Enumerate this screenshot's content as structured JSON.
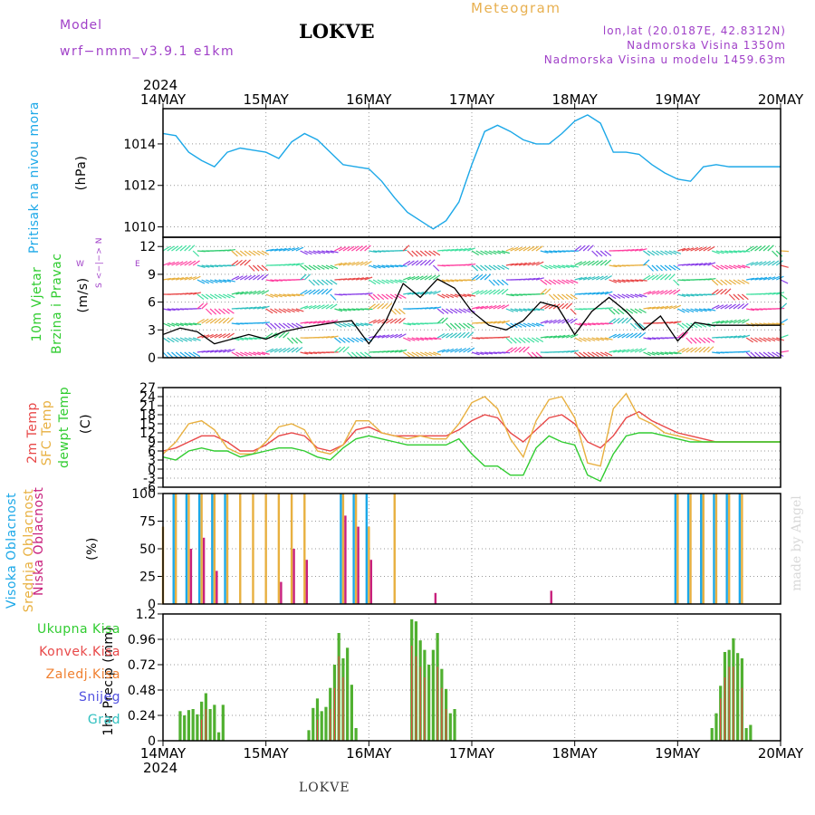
{
  "header": {
    "model_label": "Model",
    "model_name": "wrf−nmm_v3.9.1  e1km",
    "title": "LOKVE",
    "meteogram": "Meteogram",
    "lonlat": "lon,lat (20.0187E, 42.8312N)",
    "altitude": "Nadmorska Visina 1350m",
    "model_altitude": "Nadmorska Visina u modelu 1459.63m"
  },
  "footer": {
    "station": "LOKVE"
  },
  "credit": "made by Angel",
  "time_axis": {
    "year": "2024",
    "labels": [
      "14MAY",
      "15MAY",
      "16MAY",
      "17MAY",
      "18MAY",
      "19MAY",
      "20MAY"
    ]
  },
  "panels": {
    "pressure": {
      "label": "Pritisak na nivou mora",
      "unit": "(hPa)"
    },
    "wind": {
      "label_line1": "10m Vjetar",
      "label_line2": "Brzina i Pravac",
      "unit": "(m/s)",
      "compass": {
        "w": "W",
        "e": "E",
        "s": "S",
        "n": "N",
        "arrow": "<−|−>"
      }
    },
    "temp": {
      "label1": "2m Temp",
      "label2": "SFC Temp",
      "label3": "dewpt Temp",
      "unit": "(C)"
    },
    "cloud": {
      "label1": "Visoka Oblacnost",
      "label2": "Srednja Oblacnost",
      "label3": "Niska Oblacnost",
      "unit": "(%)"
    },
    "precip": {
      "label": "1hr Precip (mm)",
      "legend": [
        "Ukupna Kisa",
        "Konvek.Kisa",
        "Zaledj.Kisa",
        "Snijeg",
        "Grad"
      ]
    }
  },
  "colors": {
    "pressure": "#1ca8e8",
    "temp2m": "#e84848",
    "sfc": "#e8b040",
    "dewpt": "#30cc30",
    "high": "#1ca8e8",
    "mid": "#e8b040",
    "low": "#c8207c",
    "precip_total": "#50b030",
    "precip_conv": "#e84848",
    "frz": "#f08030",
    "snow": "#5050e0",
    "hail": "#30c0c0",
    "purple": "#a040c8"
  },
  "chart_data": [
    {
      "type": "line",
      "title": "Pritisak na nivou mora",
      "ylabel": "(hPa)",
      "ylim": [
        1009.5,
        1015.7
      ],
      "yticks": [
        1010,
        1012,
        1014
      ],
      "x_hours": [
        0,
        3,
        6,
        9,
        12,
        15,
        18,
        21,
        24,
        27,
        30,
        33,
        36,
        39,
        42,
        45,
        48,
        51,
        54,
        57,
        60,
        63,
        66,
        69,
        72,
        75,
        78,
        81,
        84,
        87,
        90,
        93,
        96,
        99,
        102,
        105,
        108,
        111,
        114,
        117,
        120,
        123,
        126,
        129,
        132,
        135,
        138,
        141,
        144
      ],
      "values": [
        1014.5,
        1014.4,
        1013.6,
        1013.2,
        1012.9,
        1013.6,
        1013.8,
        1013.7,
        1013.6,
        1013.3,
        1014.1,
        1014.5,
        1014.2,
        1013.6,
        1013.0,
        1012.9,
        1012.8,
        1012.2,
        1011.4,
        1010.7,
        1010.3,
        1009.9,
        1010.3,
        1011.2,
        1013.0,
        1014.6,
        1014.9,
        1014.6,
        1014.2,
        1014.0,
        1014.0,
        1014.5,
        1015.1,
        1015.4,
        1015.0,
        1013.6,
        1013.6,
        1013.5,
        1013.0,
        1012.6,
        1012.3,
        1012.2,
        1012.9,
        1013.0,
        1012.9,
        1012.9,
        1012.9,
        1012.9,
        1012.9
      ]
    },
    {
      "type": "line",
      "title": "10m Vjetar Brzina i Pravac",
      "ylabel": "(m/s)",
      "ylim": [
        0,
        13
      ],
      "yticks": [
        0,
        3,
        6,
        9,
        12
      ],
      "x_hours": [
        0,
        4,
        8,
        12,
        16,
        20,
        24,
        28,
        32,
        36,
        40,
        44,
        48,
        52,
        56,
        60,
        64,
        68,
        72,
        76,
        80,
        84,
        88,
        92,
        96,
        100,
        104,
        108,
        112,
        116,
        120,
        124,
        128,
        132,
        136,
        140,
        144
      ],
      "values": [
        2.5,
        3.2,
        2.8,
        1.5,
        2.0,
        2.5,
        2.0,
        2.8,
        3.2,
        3.5,
        3.8,
        4.0,
        1.5,
        4.0,
        8.0,
        6.5,
        8.5,
        7.5,
        5.0,
        3.5,
        3.0,
        4.0,
        6.0,
        5.5,
        2.5,
        5.0,
        6.5,
        5.0,
        3.0,
        4.5,
        1.8,
        3.8,
        3.5,
        3.5,
        3.5,
        3.5,
        3.5
      ]
    },
    {
      "type": "line",
      "title": "Temp",
      "ylabel": "(C)",
      "ylim": [
        -6,
        27
      ],
      "yticks": [
        -6,
        -3,
        0,
        3,
        6,
        9,
        12,
        15,
        18,
        21,
        24,
        27
      ],
      "x_hours": [
        0,
        3,
        6,
        9,
        12,
        15,
        18,
        21,
        24,
        27,
        30,
        33,
        36,
        39,
        42,
        45,
        48,
        51,
        54,
        57,
        60,
        63,
        66,
        69,
        72,
        75,
        78,
        81,
        84,
        87,
        90,
        93,
        96,
        99,
        102,
        105,
        108,
        111,
        114,
        117,
        120,
        123,
        126,
        129,
        132,
        135,
        138,
        141,
        144
      ],
      "series": [
        {
          "name": "2m Temp",
          "values": [
            6,
            7,
            9,
            11,
            11,
            9,
            6,
            6,
            8,
            11,
            12,
            11,
            7,
            6,
            8,
            13,
            14,
            12,
            11,
            11,
            11,
            11,
            11,
            13,
            16,
            18,
            17,
            12,
            9,
            13,
            17,
            18,
            15,
            9,
            7,
            11,
            17,
            19,
            16,
            14,
            12,
            11,
            10,
            9,
            9,
            9,
            9,
            9,
            9
          ]
        },
        {
          "name": "SFC Temp",
          "values": [
            5,
            9,
            15,
            16,
            13,
            7,
            5,
            5,
            9,
            14,
            15,
            13,
            6,
            5,
            8,
            16,
            16,
            12,
            11,
            10,
            11,
            10,
            10,
            15,
            22,
            24,
            20,
            10,
            4,
            16,
            23,
            24,
            17,
            2,
            1,
            20,
            25,
            17,
            15,
            12,
            11,
            10,
            9,
            9,
            9,
            9,
            9,
            9,
            9
          ]
        },
        {
          "name": "dewpt Temp",
          "values": [
            4,
            3,
            6,
            7,
            6,
            6,
            4,
            5,
            6,
            7,
            7,
            6,
            4,
            3,
            7,
            10,
            11,
            10,
            9,
            8,
            8,
            8,
            8,
            10,
            5,
            1,
            1,
            -2,
            -2,
            7,
            11,
            9,
            8,
            -2,
            -4,
            5,
            11,
            12,
            12,
            11,
            10,
            9,
            9,
            9,
            9,
            9,
            9,
            9,
            9
          ]
        }
      ]
    },
    {
      "type": "bar",
      "title": "Oblacnost",
      "ylabel": "(%)",
      "ylim": [
        0,
        100
      ],
      "yticks": [
        0,
        25,
        50,
        75,
        100
      ],
      "x_hours": [
        0,
        3,
        6,
        9,
        12,
        15,
        18,
        21,
        24,
        27,
        30,
        33,
        36,
        39,
        42,
        45,
        48,
        51,
        54,
        57,
        60,
        63,
        66,
        69,
        72,
        75,
        78,
        81,
        84,
        87,
        90,
        93,
        96,
        99,
        102,
        105,
        108,
        111,
        114,
        117,
        120,
        123,
        126,
        129,
        132,
        135,
        138,
        141,
        144
      ],
      "series": [
        {
          "name": "Visoka Oblacnost",
          "values": [
            0,
            100,
            100,
            100,
            100,
            100,
            0,
            0,
            0,
            0,
            0,
            0,
            0,
            0,
            100,
            100,
            100,
            0,
            0,
            0,
            0,
            0,
            0,
            0,
            0,
            0,
            0,
            0,
            0,
            0,
            0,
            0,
            0,
            0,
            0,
            0,
            0,
            0,
            0,
            0,
            100,
            100,
            100,
            100,
            100,
            100,
            0,
            0,
            0
          ]
        },
        {
          "name": "Srednja Oblacnost",
          "values": [
            70,
            100,
            100,
            100,
            100,
            100,
            100,
            100,
            100,
            100,
            100,
            100,
            0,
            0,
            100,
            100,
            70,
            0,
            100,
            0,
            0,
            0,
            0,
            0,
            0,
            0,
            0,
            0,
            0,
            0,
            0,
            0,
            0,
            0,
            0,
            0,
            0,
            0,
            0,
            0,
            100,
            100,
            100,
            100,
            100,
            100,
            0,
            0,
            0
          ]
        },
        {
          "name": "Niska Oblacnost",
          "values": [
            0,
            0,
            50,
            60,
            30,
            0,
            0,
            0,
            0,
            20,
            50,
            40,
            0,
            0,
            80,
            70,
            40,
            0,
            0,
            0,
            0,
            10,
            0,
            0,
            0,
            0,
            0,
            0,
            0,
            0,
            12,
            0,
            0,
            0,
            0,
            0,
            0,
            0,
            0,
            0,
            0,
            0,
            0,
            0,
            0,
            0,
            0,
            0,
            0
          ]
        }
      ]
    },
    {
      "type": "bar",
      "title": "1hr Precip",
      "ylabel": "1hr Precip (mm)",
      "ylim": [
        0,
        1.2
      ],
      "yticks": [
        0,
        0.24,
        0.48,
        0.72,
        0.96,
        1.2
      ],
      "series": [
        {
          "name": "Ukupna Kisa",
          "x_hours": [
            4,
            5,
            6,
            7,
            8,
            9,
            10,
            11,
            12,
            13,
            14,
            15,
            34,
            35,
            36,
            37,
            38,
            39,
            40,
            41,
            42,
            43,
            44,
            45,
            46,
            58,
            59,
            60,
            61,
            62,
            63,
            64,
            65,
            66,
            67,
            68,
            69,
            70,
            71,
            128,
            129,
            130,
            131,
            132,
            133,
            134,
            135,
            136,
            137
          ],
          "values": [
            0.28,
            0.24,
            0.29,
            0.3,
            0.25,
            0.37,
            0.45,
            0.3,
            0.34,
            0.08,
            0.34,
            0.0,
            0.1,
            0.31,
            0.4,
            0.28,
            0.32,
            0.5,
            0.72,
            1.02,
            0.78,
            0.88,
            0.53,
            0.12,
            0.0,
            1.15,
            1.13,
            0.95,
            0.86,
            0.72,
            0.86,
            1.02,
            0.68,
            0.49,
            0.26,
            0.3,
            0.0,
            0.0,
            0.0,
            0.12,
            0.26,
            0.52,
            0.84,
            0.86,
            0.97,
            0.83,
            0.78,
            0.12,
            0.15
          ]
        },
        {
          "name": "Konvek.Kisa",
          "x_hours": [
            9,
            10,
            36,
            39,
            40,
            41,
            42,
            58,
            59,
            60,
            61,
            64,
            65,
            66,
            130,
            131,
            132,
            133,
            135
          ],
          "values": [
            0.2,
            0.3,
            0.2,
            0.3,
            0.5,
            0.8,
            0.6,
            0.9,
            0.8,
            0.7,
            0.6,
            0.7,
            0.5,
            0.3,
            0.4,
            0.6,
            0.7,
            0.7,
            0.5
          ]
        }
      ]
    }
  ]
}
